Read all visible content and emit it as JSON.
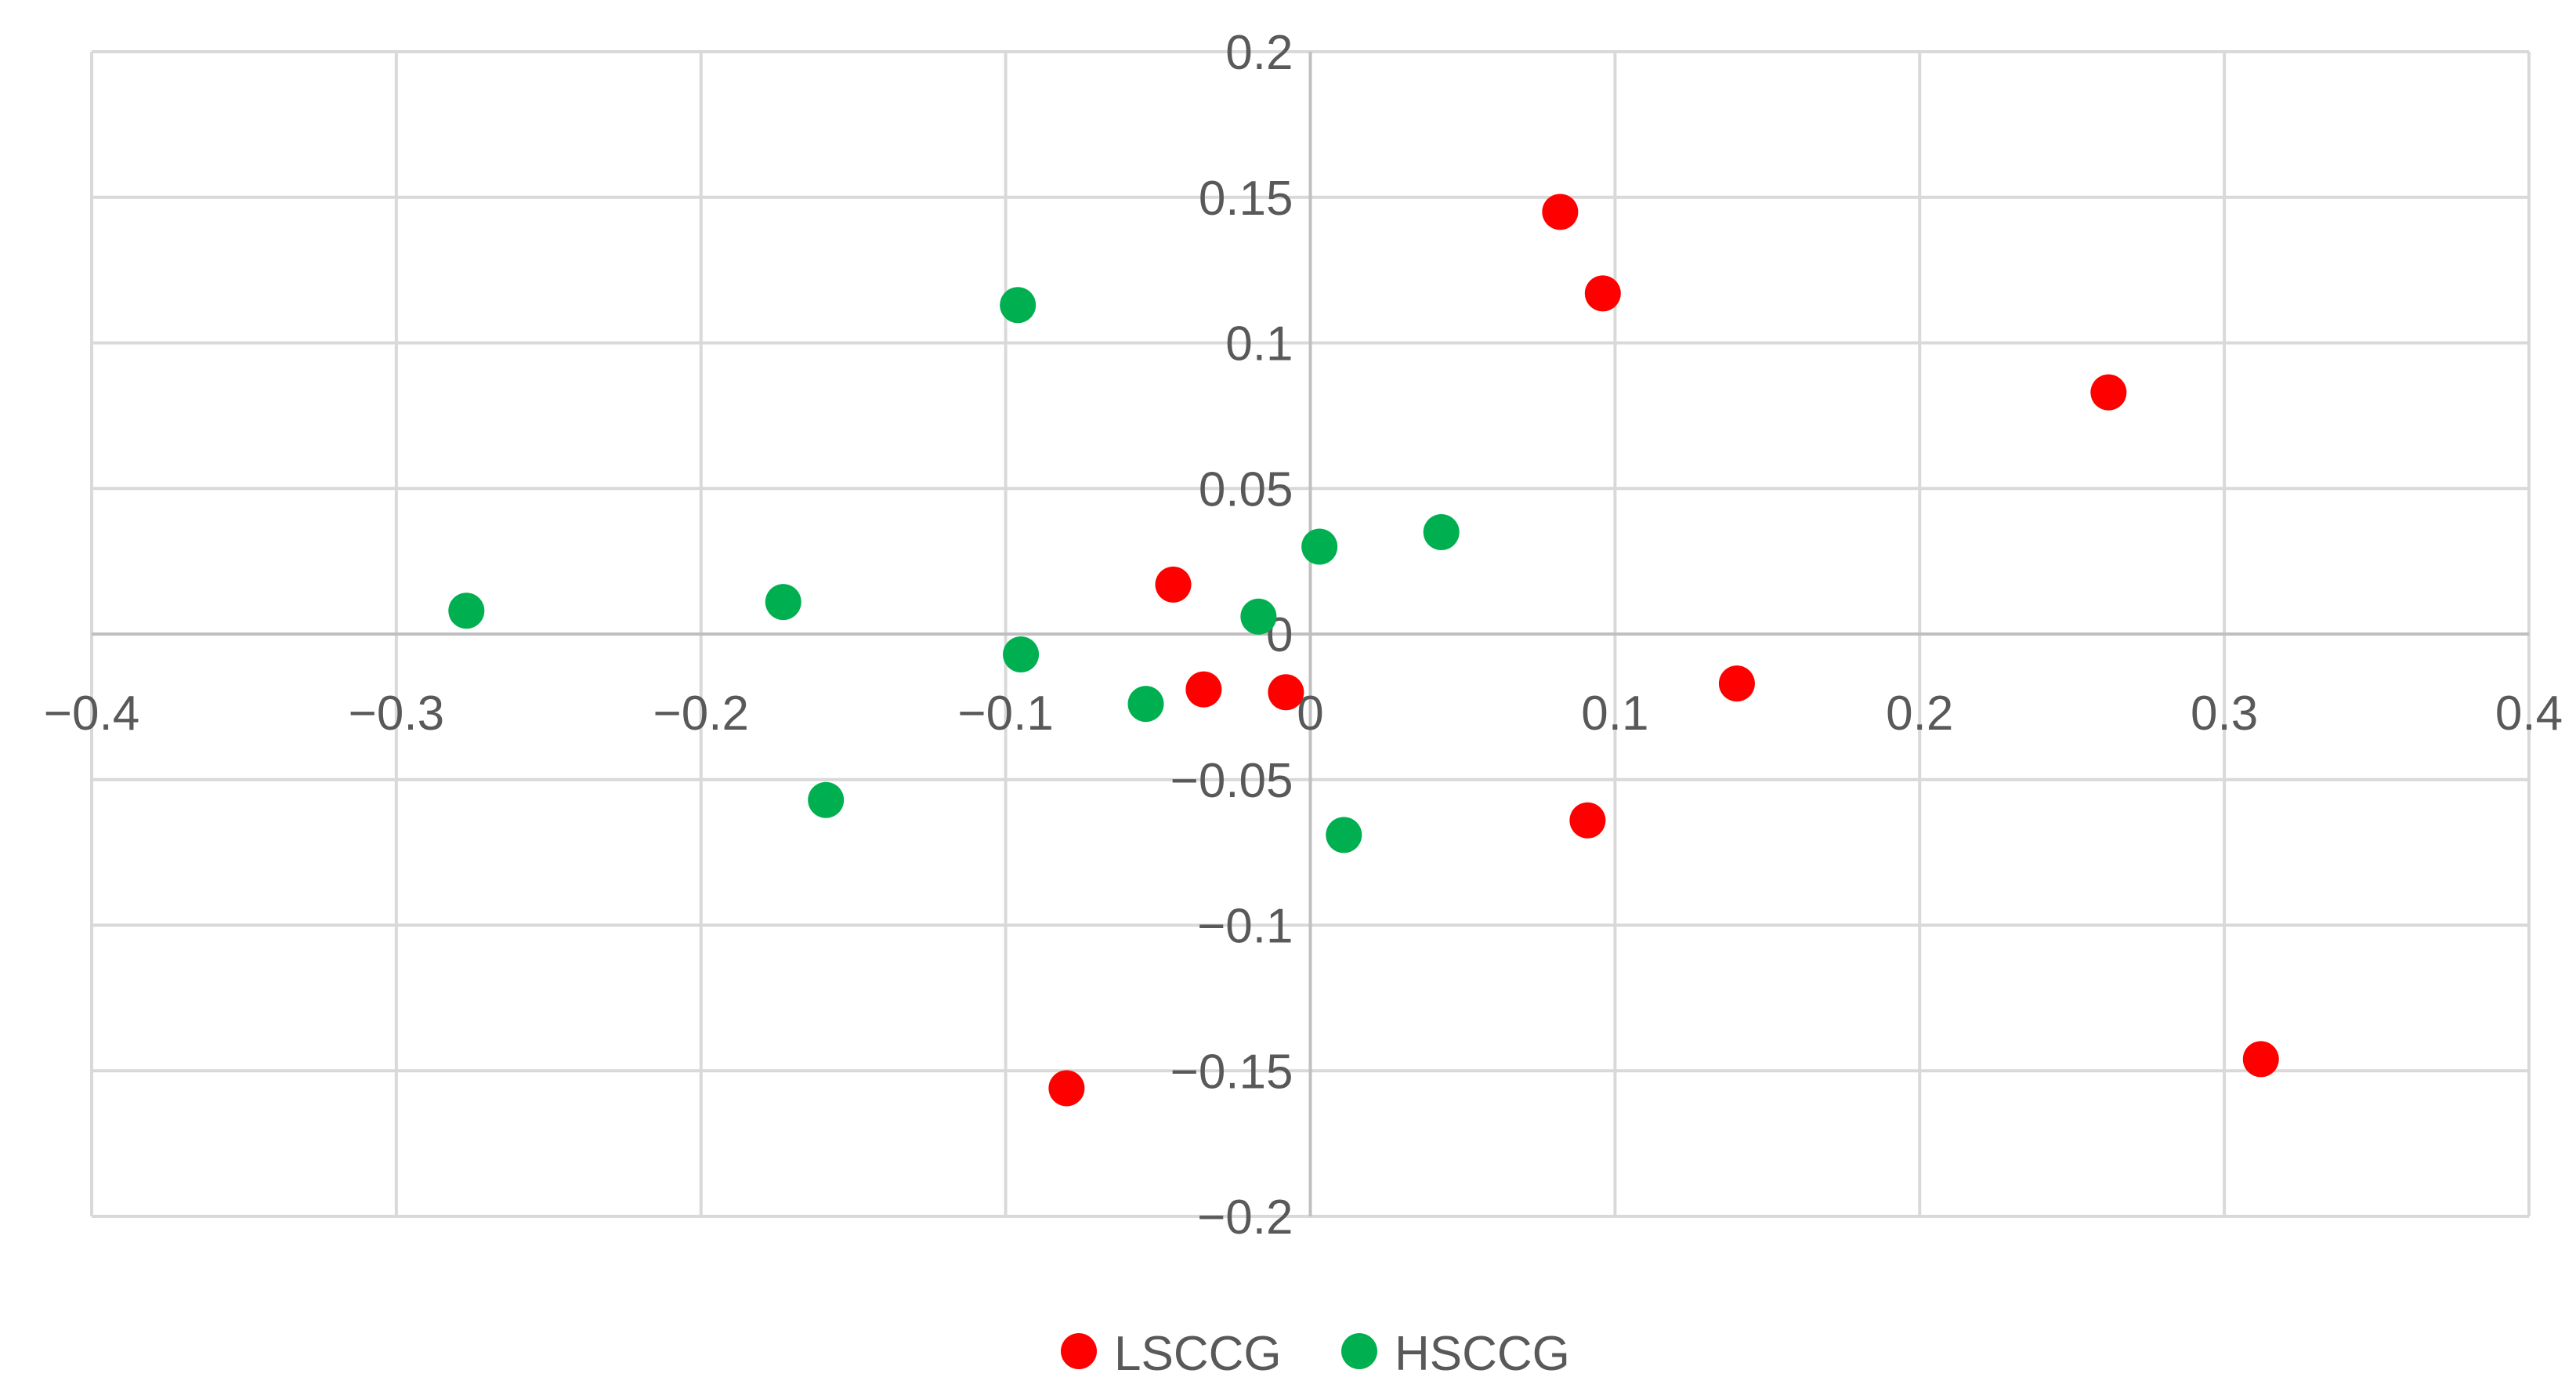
{
  "chart_data": {
    "type": "scatter",
    "title": "",
    "xlabel": "",
    "ylabel": "",
    "xlim": [
      -0.4,
      0.4
    ],
    "ylim": [
      -0.2,
      0.2
    ],
    "x_ticks": [
      -0.4,
      -0.3,
      -0.2,
      -0.1,
      0,
      0.1,
      0.2,
      0.3,
      0.4
    ],
    "y_ticks": [
      -0.2,
      -0.15,
      -0.1,
      -0.05,
      0,
      0.05,
      0.1,
      0.15,
      0.2
    ],
    "x_tick_labels": [
      "−0.4",
      "−0.3",
      "−0.2",
      "−0.1",
      "0",
      "0.1",
      "0.2",
      "0.3",
      "0.4"
    ],
    "y_tick_labels": [
      "−0.2",
      "−0.15",
      "−0.1",
      "−0.05",
      "0",
      "0.05",
      "0.1",
      "0.15",
      "0.2"
    ],
    "grid": true,
    "legend_position": "bottom-center",
    "series": [
      {
        "name": "LSCCG",
        "color": "#ff0000",
        "points": [
          {
            "x": 0.082,
            "y": 0.145
          },
          {
            "x": 0.096,
            "y": 0.117
          },
          {
            "x": 0.262,
            "y": 0.083
          },
          {
            "x": -0.045,
            "y": 0.017
          },
          {
            "x": -0.035,
            "y": -0.019
          },
          {
            "x": -0.008,
            "y": -0.02
          },
          {
            "x": 0.14,
            "y": -0.017
          },
          {
            "x": 0.091,
            "y": -0.064
          },
          {
            "x": -0.08,
            "y": -0.156
          },
          {
            "x": 0.312,
            "y": -0.146
          }
        ]
      },
      {
        "name": "HSCCG",
        "color": "#00b050",
        "points": [
          {
            "x": -0.096,
            "y": 0.113
          },
          {
            "x": -0.277,
            "y": 0.008
          },
          {
            "x": -0.173,
            "y": 0.011
          },
          {
            "x": -0.095,
            "y": -0.007
          },
          {
            "x": 0.003,
            "y": 0.03
          },
          {
            "x": 0.043,
            "y": 0.035
          },
          {
            "x": -0.017,
            "y": 0.006
          },
          {
            "x": -0.054,
            "y": -0.024
          },
          {
            "x": -0.159,
            "y": -0.057
          },
          {
            "x": 0.011,
            "y": -0.069
          }
        ]
      }
    ]
  }
}
